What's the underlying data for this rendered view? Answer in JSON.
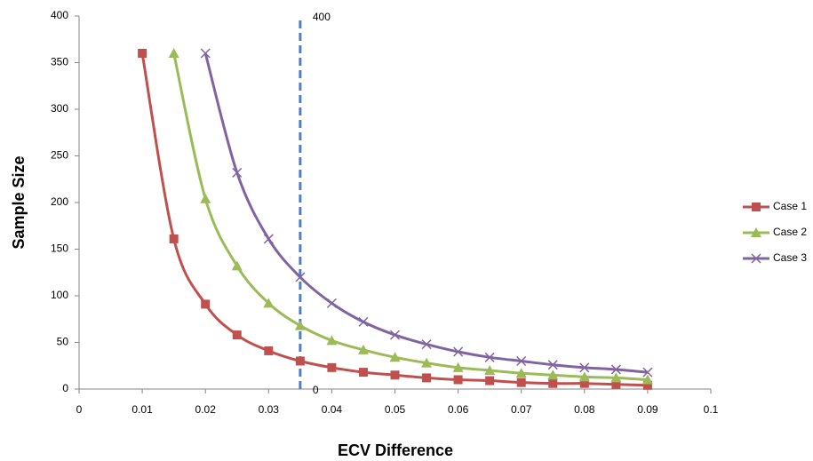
{
  "chart_data": {
    "type": "line",
    "x_label": "ECV Difference",
    "y_label": "Sample Size",
    "x": [
      0.01,
      0.015,
      0.02,
      0.025,
      0.03,
      0.035,
      0.04,
      0.045,
      0.05,
      0.055,
      0.06,
      0.065,
      0.07,
      0.075,
      0.08,
      0.085,
      0.09
    ],
    "series": [
      {
        "name": "Case 1",
        "color": "#c0504d",
        "marker": "square",
        "values": [
          360,
          161,
          91,
          58,
          41,
          30,
          23,
          18,
          15,
          12,
          10,
          9,
          7,
          6,
          6,
          5,
          4
        ]
      },
      {
        "name": "Case 2",
        "color": "#9bbb59",
        "marker": "triangle",
        "values": [
          null,
          360,
          204,
          132,
          92,
          68,
          52,
          42,
          34,
          28,
          23,
          20,
          17,
          15,
          13,
          12,
          10
        ]
      },
      {
        "name": "Case 3",
        "color": "#8064a2",
        "marker": "x",
        "values": [
          null,
          null,
          360,
          232,
          161,
          120,
          92,
          72,
          58,
          48,
          40,
          34,
          30,
          26,
          23,
          21,
          18
        ]
      }
    ],
    "vertical_line": {
      "x": 0.035,
      "y": [
        0,
        400
      ],
      "color": "#4f81bd"
    },
    "xlim": [
      0,
      0.1
    ],
    "xticks": [
      0,
      0.01,
      0.02,
      0.03,
      0.04,
      0.05,
      0.06,
      0.07,
      0.08,
      0.09,
      0.1
    ],
    "ylim": [
      0,
      400
    ],
    "yticks": [
      0,
      50,
      100,
      150,
      200,
      250,
      300,
      350,
      400
    ],
    "grid": false,
    "legend": "right"
  }
}
